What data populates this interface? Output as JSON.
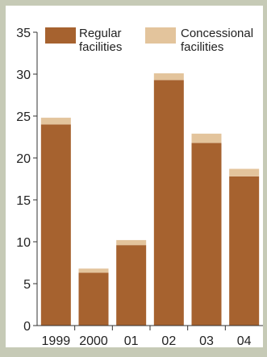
{
  "chart_data": {
    "type": "bar",
    "stacked": true,
    "categories": [
      "1999",
      "2000",
      "01",
      "02",
      "03",
      "04"
    ],
    "series": [
      {
        "name": "Regular facilities",
        "label_lines": [
          "Regular",
          "facilities"
        ],
        "color": "#a6622f",
        "values": [
          24.0,
          6.3,
          9.6,
          29.3,
          21.8,
          17.8
        ]
      },
      {
        "name": "Concessional facilities",
        "label_lines": [
          "Concessional",
          "facilities"
        ],
        "color": "#e3c49c",
        "values": [
          0.8,
          0.5,
          0.6,
          0.8,
          1.1,
          0.9
        ]
      }
    ],
    "yticks": [
      0,
      5,
      10,
      15,
      20,
      25,
      30,
      35
    ],
    "ylim": [
      0,
      35
    ],
    "legend_position": "top",
    "grid": false,
    "colors": {
      "background": "#c6cab6",
      "plot_background": "#ffffff",
      "axis": "#333333"
    }
  }
}
